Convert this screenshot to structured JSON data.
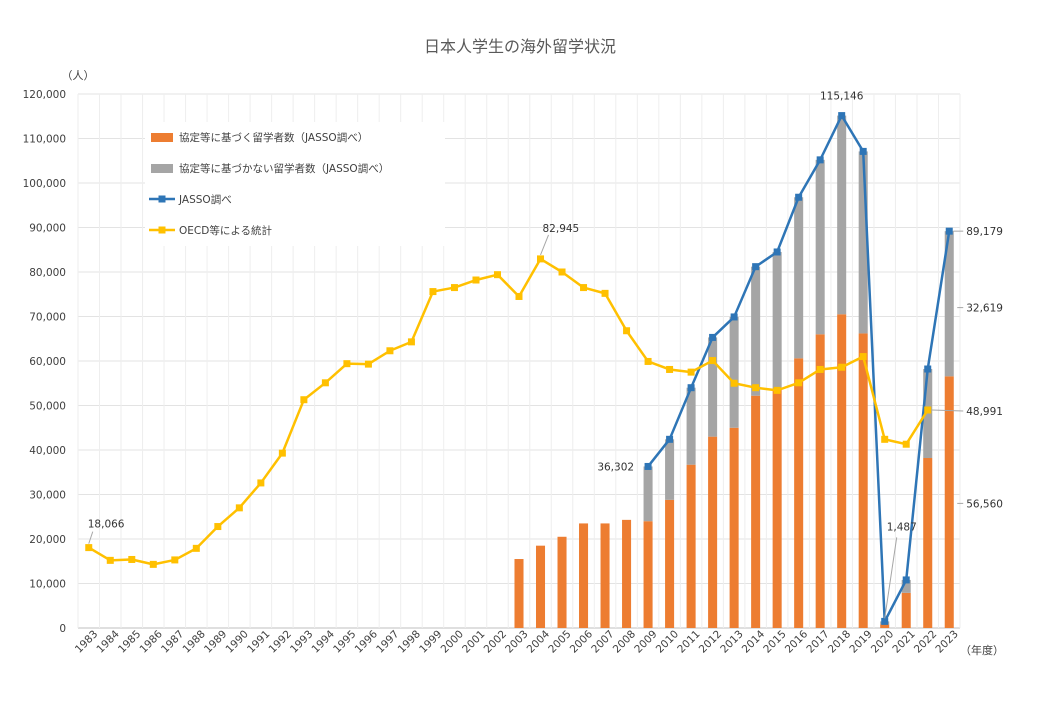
{
  "chart_data": {
    "type": "bar",
    "title": "日本人学生の海外留学状況",
    "y_unit": "（人）",
    "x_unit": "（年度）",
    "ylim": [
      0,
      120000
    ],
    "yticks": [
      0,
      10000,
      20000,
      30000,
      40000,
      50000,
      60000,
      70000,
      80000,
      90000,
      100000,
      110000,
      120000
    ],
    "ytick_labels": [
      "0",
      "10,000",
      "20,000",
      "30,000",
      "40,000",
      "50,000",
      "60,000",
      "70,000",
      "80,000",
      "90,000",
      "100,000",
      "110,000",
      "120,000"
    ],
    "grid": true,
    "legend_position": "top-left",
    "categories": [
      "1983",
      "1984",
      "1985",
      "1986",
      "1987",
      "1988",
      "1989",
      "1990",
      "1991",
      "1992",
      "1993",
      "1994",
      "1995",
      "1996",
      "1997",
      "1998",
      "1999",
      "2000",
      "2001",
      "2002",
      "2003",
      "2004",
      "2005",
      "2006",
      "2007",
      "2008",
      "2009",
      "2010",
      "2011",
      "2012",
      "2013",
      "2014",
      "2015",
      "2016",
      "2017",
      "2018",
      "2019",
      "2020",
      "2021",
      "2022",
      "2023"
    ],
    "series": [
      {
        "name": "協定等に基づく留学者数（JASSO調べ）",
        "kind": "bar",
        "color": "#ED7D31",
        "values": [
          null,
          null,
          null,
          null,
          null,
          null,
          null,
          null,
          null,
          null,
          null,
          null,
          null,
          null,
          null,
          null,
          null,
          null,
          null,
          null,
          15500,
          18500,
          20500,
          23500,
          23500,
          24300,
          24000,
          28800,
          36700,
          43000,
          45000,
          52200,
          53800,
          60600,
          66000,
          70500,
          66200,
          800,
          7900,
          38200,
          56560
        ]
      },
      {
        "name": "協定等に基づかない留学者数（JASSO調べ）",
        "kind": "bar",
        "color": "#A5A5A5",
        "values": [
          null,
          null,
          null,
          null,
          null,
          null,
          null,
          null,
          null,
          null,
          null,
          null,
          null,
          null,
          null,
          null,
          null,
          null,
          null,
          null,
          null,
          null,
          null,
          null,
          null,
          null,
          12302,
          13600,
          17300,
          22300,
          24900,
          29000,
          30700,
          36200,
          39200,
          44646,
          40900,
          687,
          2900,
          20000,
          32619
        ]
      },
      {
        "name": "JASSO調べ",
        "kind": "line",
        "color": "#2E75B6",
        "values": [
          null,
          null,
          null,
          null,
          null,
          null,
          null,
          null,
          null,
          null,
          null,
          null,
          null,
          null,
          null,
          null,
          null,
          null,
          null,
          null,
          null,
          null,
          null,
          null,
          null,
          null,
          36302,
          42400,
          54000,
          65300,
          69900,
          81200,
          84500,
          96800,
          105200,
          115146,
          107100,
          1487,
          10800,
          58200,
          89179
        ]
      },
      {
        "name": "OECD等による統計",
        "kind": "line",
        "color": "#FFC000",
        "values": [
          18066,
          15200,
          15400,
          14300,
          15300,
          17900,
          22800,
          27000,
          32600,
          39300,
          51300,
          55100,
          59400,
          59300,
          62300,
          64300,
          75600,
          76500,
          78200,
          79400,
          74500,
          82945,
          80000,
          76500,
          75200,
          66800,
          59900,
          58100,
          57500,
          60100,
          55000,
          54000,
          53400,
          55100,
          58100,
          58600,
          61000,
          42400,
          41300,
          48991,
          null
        ]
      }
    ],
    "annotations": [
      {
        "text": "18,066"
      },
      {
        "text": "82,945"
      },
      {
        "text": "36,302"
      },
      {
        "text": "115,146"
      },
      {
        "text": "1,487"
      },
      {
        "text": "89,179"
      },
      {
        "text": "32,619"
      },
      {
        "text": "48,991"
      },
      {
        "text": "56,560"
      }
    ]
  }
}
